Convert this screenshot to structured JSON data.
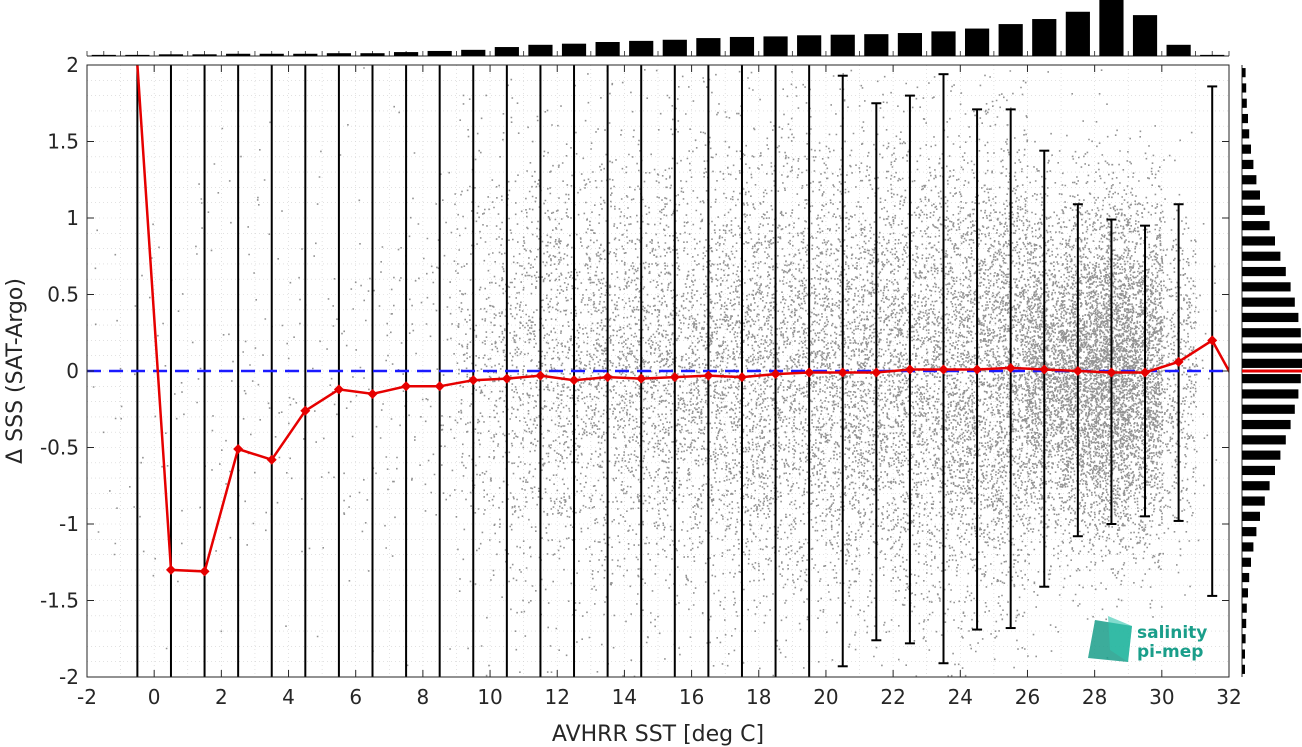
{
  "chart_data": {
    "type": "scatter",
    "title": "",
    "xlabel": "AVHRR SST [deg C]",
    "ylabel": "Δ SSS (SAT-Argo)",
    "xlim": [
      -2,
      32
    ],
    "ylim": [
      -2,
      2
    ],
    "x_ticks": [
      -2,
      0,
      2,
      4,
      6,
      8,
      10,
      12,
      14,
      16,
      18,
      20,
      22,
      24,
      26,
      28,
      30,
      32
    ],
    "y_ticks": [
      -2,
      -1.5,
      -1,
      -0.5,
      0,
      0.5,
      1,
      1.5,
      2
    ],
    "y_tick_labels": [
      "-2",
      "-1.5",
      "-1",
      "-0.5",
      "0",
      "0.5",
      "1",
      "1.5",
      "2"
    ],
    "grid": true,
    "legend": "none",
    "colors": {
      "scatter": "#808080",
      "mean_line": "#e60000",
      "zero_line": "#1a1aff",
      "error_bars": "#000000",
      "histogram": "#000000"
    },
    "zero_line": {
      "y": 0,
      "style": "dashed"
    },
    "mean_series": {
      "x": [
        -0.5,
        0.5,
        1.5,
        2.5,
        3.5,
        4.5,
        5.5,
        6.5,
        7.5,
        8.5,
        9.5,
        10.5,
        11.5,
        12.5,
        13.5,
        14.5,
        15.5,
        16.5,
        17.5,
        18.5,
        19.5,
        20.5,
        21.5,
        22.5,
        23.5,
        24.5,
        25.5,
        26.5,
        27.5,
        28.5,
        29.5,
        30.5,
        31.5,
        32.5
      ],
      "y": [
        2.0,
        -1.3,
        -1.31,
        -0.51,
        -0.58,
        -0.26,
        -0.12,
        -0.15,
        -0.1,
        -0.1,
        -0.06,
        -0.05,
        -0.03,
        -0.06,
        -0.04,
        -0.05,
        -0.04,
        -0.03,
        -0.04,
        -0.02,
        -0.01,
        -0.01,
        -0.01,
        0.01,
        0.01,
        0.01,
        0.02,
        0.01,
        0.0,
        -0.01,
        -0.01,
        0.06,
        0.2,
        -0.2
      ]
    },
    "error_bars": {
      "x": [
        -0.5,
        0.5,
        1.5,
        2.5,
        3.5,
        4.5,
        5.5,
        6.5,
        7.5,
        8.5,
        9.5,
        10.5,
        11.5,
        12.5,
        13.5,
        14.5,
        15.5,
        16.5,
        17.5,
        18.5,
        19.5,
        20.5,
        21.5,
        22.5,
        23.5,
        24.5,
        25.5,
        26.5,
        27.5,
        28.5,
        29.5,
        30.5,
        31.5
      ],
      "lower": [
        -2,
        -2,
        -2,
        -2,
        -2,
        -2,
        -2,
        -2,
        -2,
        -2,
        -2,
        -2,
        -2,
        -2,
        -2,
        -2,
        -2,
        -2,
        -2,
        -2,
        -2,
        -1.93,
        -1.76,
        -1.78,
        -1.91,
        -1.69,
        -1.68,
        -1.41,
        -1.08,
        -1.0,
        -0.95,
        -0.98,
        -1.47
      ],
      "upper": [
        2,
        2,
        2,
        2,
        2,
        2,
        2,
        2,
        2,
        2,
        2,
        2,
        2,
        2,
        2,
        2,
        2,
        2,
        2,
        2,
        2,
        1.93,
        1.75,
        1.8,
        1.94,
        1.71,
        1.71,
        1.44,
        1.09,
        0.99,
        0.95,
        1.09,
        1.86
      ]
    },
    "top_histogram": {
      "x": [
        -1.5,
        -0.5,
        0.5,
        1.5,
        2.5,
        3.5,
        4.5,
        5.5,
        6.5,
        7.5,
        8.5,
        9.5,
        10.5,
        11.5,
        12.5,
        13.5,
        14.5,
        15.5,
        16.5,
        17.5,
        18.5,
        19.5,
        20.5,
        21.5,
        22.5,
        23.5,
        24.5,
        25.5,
        26.5,
        27.5,
        28.5,
        29.5,
        30.5,
        31.5
      ],
      "relative_height": [
        0.02,
        0.02,
        0.03,
        0.03,
        0.04,
        0.04,
        0.04,
        0.05,
        0.05,
        0.07,
        0.09,
        0.11,
        0.16,
        0.2,
        0.22,
        0.25,
        0.27,
        0.29,
        0.32,
        0.34,
        0.35,
        0.37,
        0.38,
        0.39,
        0.41,
        0.44,
        0.49,
        0.57,
        0.66,
        0.79,
        1.0,
        0.73,
        0.2,
        0.02
      ]
    },
    "right_histogram": {
      "y": [
        1.95,
        1.85,
        1.75,
        1.65,
        1.55,
        1.45,
        1.35,
        1.25,
        1.15,
        1.05,
        0.95,
        0.85,
        0.75,
        0.65,
        0.55,
        0.45,
        0.35,
        0.25,
        0.15,
        0.05,
        -0.05,
        -0.15,
        -0.25,
        -0.35,
        -0.45,
        -0.55,
        -0.65,
        -0.75,
        -0.85,
        -0.95,
        -1.05,
        -1.15,
        -1.25,
        -1.35,
        -1.45,
        -1.55,
        -1.65,
        -1.75,
        -1.85,
        -1.95
      ],
      "relative_width": [
        0.06,
        0.07,
        0.08,
        0.1,
        0.12,
        0.15,
        0.19,
        0.24,
        0.3,
        0.38,
        0.46,
        0.55,
        0.64,
        0.73,
        0.81,
        0.88,
        0.94,
        0.98,
        1.0,
        1.0,
        0.98,
        0.94,
        0.88,
        0.81,
        0.73,
        0.64,
        0.55,
        0.46,
        0.38,
        0.3,
        0.24,
        0.19,
        0.15,
        0.12,
        0.1,
        0.08,
        0.07,
        0.06,
        0.05,
        0.05
      ]
    },
    "right_histogram_marker": {
      "y": 0
    }
  },
  "logo": {
    "line1": "salinity",
    "line2": "pi-mep",
    "color": "#1a9e8a"
  }
}
